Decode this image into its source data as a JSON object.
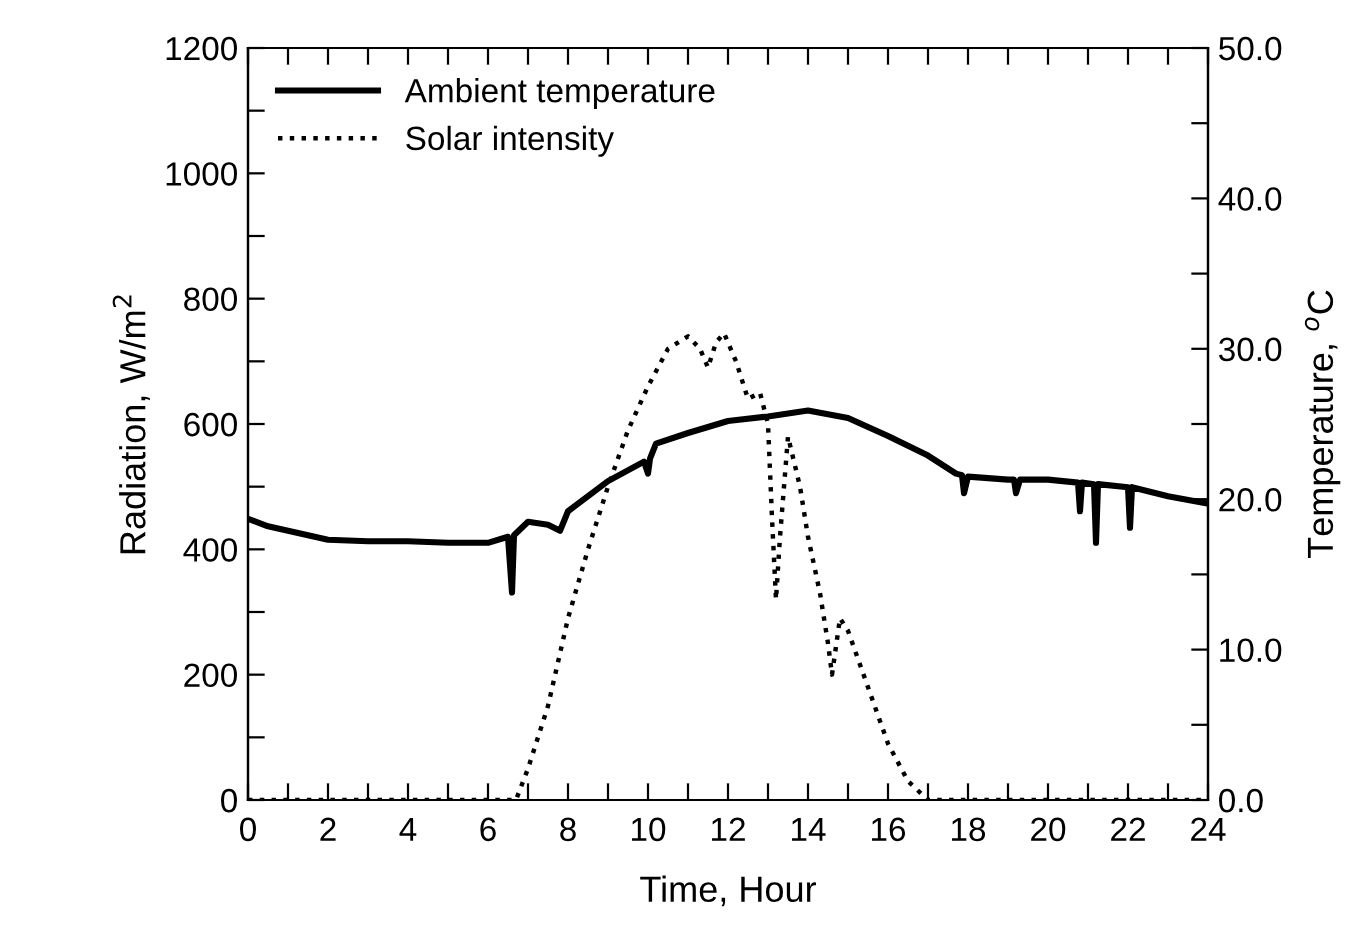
{
  "chart_data": {
    "type": "line",
    "xlabel": "Time, Hour",
    "ylabel": "Radiation, W/m$^{2}$",
    "y2label": "Temperature, $^{o}$C",
    "xlim": [
      0,
      24
    ],
    "xticks": [
      0,
      {
        "value": 1,
        "label": null
      },
      2,
      {
        "value": 3,
        "label": null
      },
      4,
      {
        "value": 5,
        "label": null
      },
      6,
      {
        "value": 7,
        "label": null
      },
      8,
      {
        "value": 9,
        "label": null
      },
      10,
      {
        "value": 11,
        "label": null
      },
      12,
      {
        "value": 13,
        "label": null
      },
      14,
      {
        "value": 15,
        "label": null
      },
      16,
      {
        "value": 17,
        "label": null
      },
      18,
      {
        "value": 19,
        "label": null
      },
      20,
      {
        "value": 21,
        "label": null
      },
      22,
      {
        "value": 23,
        "label": null
      },
      24
    ],
    "ylim": [
      0,
      1200
    ],
    "yticks": [
      0,
      {
        "value": 100,
        "label": null
      },
      200,
      {
        "value": 300,
        "label": null
      },
      400,
      {
        "value": 500,
        "label": null
      },
      600,
      {
        "value": 700,
        "label": null
      },
      800,
      {
        "value": 900,
        "label": null
      },
      1000,
      {
        "value": 1100,
        "label": null
      },
      1200
    ],
    "y2lim": [
      0,
      50
    ],
    "y2ticks": [
      {
        "value": 0,
        "label": "0.0"
      },
      {
        "value": 5,
        "label": null
      },
      {
        "value": 10,
        "label": "10.0"
      },
      {
        "value": 15,
        "label": null
      },
      {
        "value": 20,
        "label": "20.0"
      },
      {
        "value": 25,
        "label": null
      },
      {
        "value": 30,
        "label": "30.0"
      },
      {
        "value": 35,
        "label": null
      },
      {
        "value": 40,
        "label": "40.0"
      },
      {
        "value": 45,
        "label": null
      },
      {
        "value": 50,
        "label": "50.0"
      }
    ],
    "legend": "top left",
    "grid": false,
    "marker": "none",
    "series": [
      {
        "name": "Ambient temperature",
        "color": "#000000",
        "axis": "y2",
        "line_style": "solid",
        "x": [
          0,
          0.5,
          1,
          1.5,
          2,
          3,
          4,
          5,
          6,
          6.5,
          6.6,
          6.65,
          7,
          7.5,
          7.8,
          8,
          9,
          9.9,
          10,
          10.05,
          10.2,
          11,
          12,
          13,
          14,
          15,
          16,
          17,
          17.7,
          17.85,
          17.9,
          18,
          19,
          19.15,
          19.2,
          19.3,
          20,
          20.75,
          20.8,
          20.85,
          21.15,
          21.2,
          21.25,
          22,
          22.05,
          22.1,
          23,
          24
        ],
        "values": [
          18.7,
          18.2,
          17.9,
          17.6,
          17.3,
          17.2,
          17.2,
          17.1,
          17.1,
          17.5,
          13.8,
          17.6,
          18.5,
          18.3,
          17.9,
          19.2,
          21.2,
          22.5,
          21.7,
          22.7,
          23.7,
          24.4,
          25.2,
          25.5,
          25.9,
          25.4,
          24.2,
          22.9,
          21.7,
          21.6,
          20.4,
          21.5,
          21.3,
          21.3,
          20.4,
          21.3,
          21.3,
          21.1,
          19.2,
          21.1,
          21.0,
          17.1,
          21.0,
          20.8,
          18.1,
          20.8,
          20.2,
          19.7
        ]
      },
      {
        "name": "Solar intensity",
        "color": "#000000",
        "line_style": "dotted",
        "x": [
          0,
          6.7,
          7,
          7.5,
          8,
          8.5,
          9,
          9.5,
          10,
          10.5,
          11,
          11.3,
          11.5,
          11.7,
          11.9,
          12.2,
          12.5,
          12.8,
          13.0,
          13.1,
          13.2,
          13.3,
          13.5,
          13.8,
          14.0,
          14.3,
          14.5,
          14.6,
          14.8,
          15,
          15.5,
          16,
          16.5,
          17,
          24
        ],
        "values": [
          0,
          0,
          50,
          150,
          290,
          400,
          500,
          590,
          660,
          720,
          740,
          720,
          690,
          730,
          745,
          700,
          640,
          650,
          600,
          450,
          320,
          420,
          580,
          500,
          420,
          330,
          250,
          200,
          290,
          270,
          180,
          90,
          30,
          0,
          0
        ]
      }
    ]
  }
}
